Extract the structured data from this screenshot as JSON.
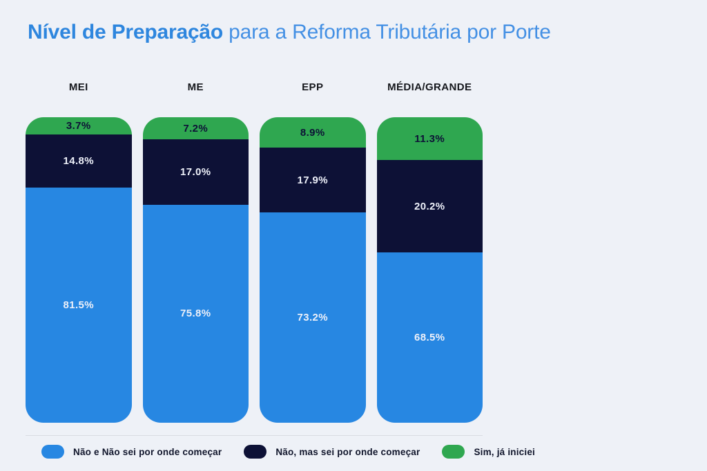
{
  "title": {
    "highlight": "Nível de Preparação",
    "rest": " para a Reforma Tributária por Porte"
  },
  "colors": {
    "background": "#EEF1F7",
    "title_highlight": "#2E86DE",
    "title_rest": "#4490E4",
    "blue": "#2787E2",
    "navy": "#0D1136",
    "green": "#2FA750",
    "divider": "#D8DCE2",
    "header_text": "#15171C",
    "label_on_dark": "#EDF0F9",
    "label_on_green": "#0D1136",
    "legend_text": "#10152B"
  },
  "chart_data": {
    "type": "bar",
    "stacked": true,
    "orientation": "vertical",
    "title": "Nível de Preparação para a Reforma Tributária por Porte",
    "categories": [
      "MEI",
      "ME",
      "EPP",
      "MÉDIA/GRANDE"
    ],
    "series": [
      {
        "name": "Não e Não sei por onde começar",
        "color": "#2787E2",
        "values": [
          81.5,
          75.8,
          73.2,
          68.5
        ],
        "labels": [
          "81.5%",
          "75.8%",
          "73.2%",
          "68.5%"
        ]
      },
      {
        "name": "Não, mas sei por onde começar",
        "color": "#0D1136",
        "values": [
          14.8,
          17.0,
          17.9,
          20.2
        ],
        "labels": [
          "14.8%",
          "17.0%",
          "17.9%",
          "20.2%"
        ]
      },
      {
        "name": "Sim, já iniciei",
        "color": "#2FA750",
        "values": [
          3.7,
          7.2,
          8.9,
          11.3
        ],
        "labels": [
          "3.7%",
          "7.2%",
          "8.9%",
          "11.3%"
        ]
      }
    ],
    "legend_position": "bottom",
    "grid": false,
    "value_unit": "%",
    "layout_hints": {
      "segment_order_top_to_bottom": [
        "green",
        "navy",
        "blue"
      ],
      "display_segment_heights_pct": {
        "green": [
          5.6,
          7.3,
          10.0,
          14.0
        ],
        "navy": [
          17.4,
          21.3,
          21.2,
          30.3
        ],
        "blue": [
          77.0,
          71.4,
          68.8,
          55.7
        ]
      }
    }
  },
  "legend": {
    "items": [
      {
        "swatch": "blue",
        "label": "Não e Não sei por onde começar"
      },
      {
        "swatch": "navy",
        "label": "Não, mas sei por onde começar"
      },
      {
        "swatch": "green",
        "label": "Sim, já iniciei"
      }
    ]
  }
}
